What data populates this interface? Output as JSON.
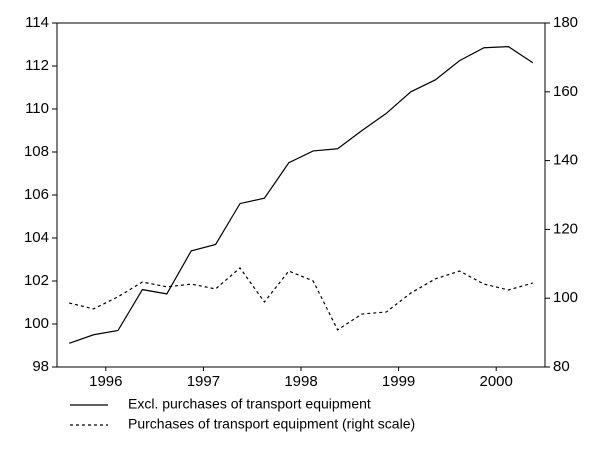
{
  "chart_data": {
    "type": "line",
    "x": [
      1996.125,
      1996.375,
      1996.625,
      1996.875,
      1997.125,
      1997.375,
      1997.625,
      1997.875,
      1998.125,
      1998.375,
      1998.625,
      1998.875,
      1999.125,
      1999.375,
      1999.625,
      1999.875,
      2000.125,
      2000.375,
      2000.625,
      2000.875
    ],
    "xlim": [
      1996,
      2001
    ],
    "xticks": [
      {
        "value": 1996.5,
        "label": "1996"
      },
      {
        "value": 1997.5,
        "label": "1997"
      },
      {
        "value": 1998.5,
        "label": "1998"
      },
      {
        "value": 1999.5,
        "label": "1999"
      },
      {
        "value": 2000.5,
        "label": "2000"
      }
    ],
    "ylim": [
      98,
      114
    ],
    "yticks": [
      98,
      100,
      102,
      104,
      106,
      108,
      110,
      112,
      114
    ],
    "y2lim": [
      80,
      180
    ],
    "y2ticks": [
      80,
      100,
      120,
      140,
      160,
      180
    ],
    "series": [
      {
        "name": "Excl. purchases of transport equipment",
        "color": "#000000",
        "dash": "solid",
        "values": [
          99.1,
          99.5,
          99.7,
          101.6,
          101.4,
          103.4,
          103.7,
          105.6,
          105.85,
          107.5,
          108.05,
          108.15,
          109.0,
          109.8,
          110.8,
          111.35,
          112.25,
          112.85,
          112.9,
          112.15
        ]
      },
      {
        "name": "Purchases of transport equipment (right scale)",
        "color": "#000000",
        "dash": "dashed",
        "axis": "y2",
        "values": [
          98.6,
          96.9,
          100.4,
          104.7,
          103.3,
          104.1,
          102.7,
          108.8,
          98.9,
          107.9,
          105.0,
          90.8,
          95.4,
          96.0,
          101.5,
          105.6,
          107.9,
          104.1,
          102.4,
          104.4
        ]
      }
    ]
  }
}
